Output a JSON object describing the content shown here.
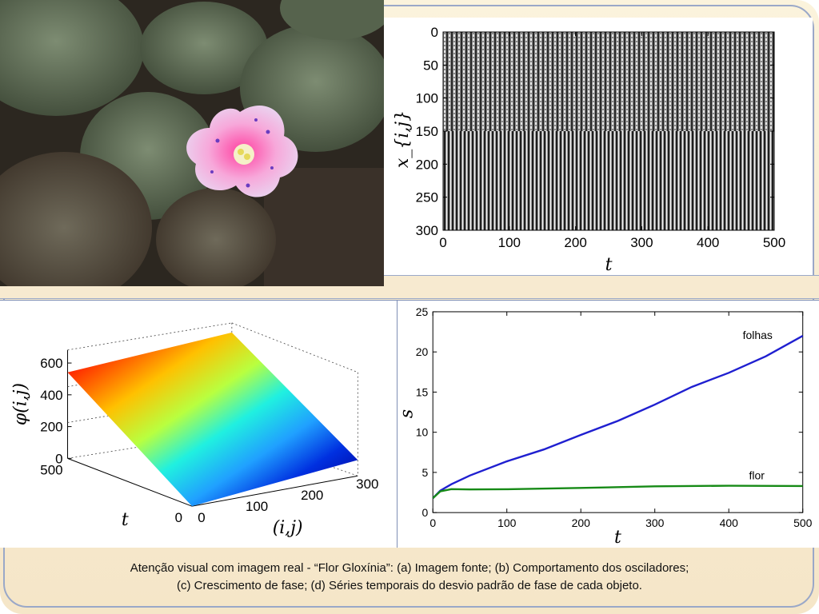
{
  "caption": {
    "line1": "Atenção visual com imagem real - “Flor Gloxínia”: (a) Imagem fonte; (b) Comportamento dos osciladores;",
    "line2": "(c) Crescimento de fase; (d) Séries temporais do desvio padrão de fase de cada objeto."
  },
  "chart_data": [
    {
      "type": "heatmap",
      "xlabel": "t",
      "ylabel": "x_{i,j}",
      "xlim": [
        0,
        500
      ],
      "ylim": [
        300,
        0
      ],
      "xticks": [
        "0",
        "100",
        "200",
        "300",
        "400",
        "500"
      ],
      "yticks": [
        "0",
        "50",
        "100",
        "150",
        "200",
        "250",
        "300"
      ]
    },
    {
      "type": "surface",
      "zlabel": "φ(i,j)",
      "ylabel": "t",
      "xlabel": "(i,j)",
      "zticks": [
        "0",
        "200",
        "400",
        "600"
      ],
      "yticks": [
        "500",
        "0"
      ],
      "xticks": [
        "0",
        "100",
        "200",
        "300"
      ]
    },
    {
      "type": "line",
      "xlabel": "t",
      "ylabel": "s",
      "xlim": [
        0,
        500
      ],
      "ylim": [
        0,
        25
      ],
      "xticks": [
        "0",
        "100",
        "200",
        "300",
        "400",
        "500"
      ],
      "yticks": [
        "0",
        "5",
        "10",
        "15",
        "20",
        "25"
      ],
      "series": [
        {
          "name": "folhas",
          "color": "#1f1fd0",
          "x": [
            0,
            10,
            25,
            50,
            100,
            150,
            200,
            250,
            300,
            350,
            400,
            450,
            500
          ],
          "y": [
            1.8,
            2.6,
            3.4,
            4.6,
            6.5,
            8.0,
            9.7,
            11.3,
            13.3,
            15.6,
            17.5,
            19.6,
            22.0
          ]
        },
        {
          "name": "flor",
          "color": "#168a16",
          "x": [
            0,
            10,
            25,
            50,
            100,
            200,
            300,
            400,
            500
          ],
          "y": [
            1.8,
            2.5,
            2.9,
            3.0,
            3.05,
            3.1,
            3.15,
            3.2,
            3.3
          ]
        }
      ]
    }
  ]
}
